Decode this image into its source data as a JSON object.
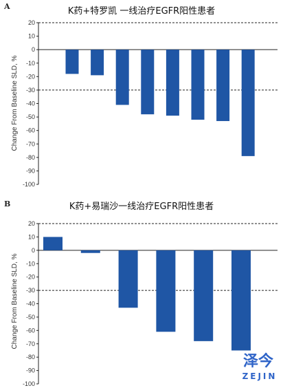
{
  "colors": {
    "bar": "#1f56a5",
    "axis": "#222222",
    "refline": "#222222"
  },
  "chart_data": [
    {
      "type": "bar",
      "panel": "A",
      "title": "K药+特罗凯 一线治疗EGFR阳性患者",
      "ylabel": "Change From Baseline SLD, %",
      "ylim": [
        -100,
        20
      ],
      "yticks": [
        20,
        10,
        0,
        -10,
        -20,
        -30,
        -40,
        -50,
        -60,
        -70,
        -80,
        -90,
        -100
      ],
      "reference_lines": [
        20,
        -30
      ],
      "values": [
        -18,
        -19,
        -41,
        -48,
        -49,
        -52,
        -53,
        -79
      ]
    },
    {
      "type": "bar",
      "panel": "B",
      "title": "K药+易瑞沙一线治疗EGFR阳性患者",
      "ylabel": "Change From Baseline SLD, %",
      "ylim": [
        -100,
        20
      ],
      "yticks": [
        20,
        10,
        0,
        -10,
        -20,
        -30,
        -40,
        -50,
        -60,
        -70,
        -80,
        -90,
        -100
      ],
      "reference_lines": [
        20,
        -30
      ],
      "values": [
        10,
        -2,
        -43,
        -61,
        -68,
        -75
      ]
    }
  ],
  "watermark": {
    "main": "泽今",
    "sub": "ZEJIN"
  }
}
